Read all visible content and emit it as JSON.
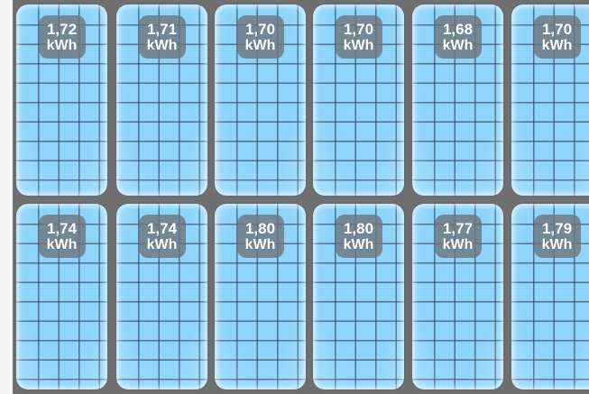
{
  "panels": [
    {
      "value": "1,72",
      "unit": "kWh"
    },
    {
      "value": "1,71",
      "unit": "kWh"
    },
    {
      "value": "1,70",
      "unit": "kWh"
    },
    {
      "value": "1,70",
      "unit": "kWh"
    },
    {
      "value": "1,68",
      "unit": "kWh"
    },
    {
      "value": "1,70",
      "unit": "kWh"
    },
    {
      "value": "1,74",
      "unit": "kWh"
    },
    {
      "value": "1,74",
      "unit": "kWh"
    },
    {
      "value": "1,80",
      "unit": "kWh"
    },
    {
      "value": "1,80",
      "unit": "kWh"
    },
    {
      "value": "1,77",
      "unit": "kWh"
    },
    {
      "value": "1,79",
      "unit": "kWh"
    }
  ],
  "colors": {
    "panel_fill": "#8fd4fb",
    "grid_line": "#37506a",
    "frame": "#6f6f6f",
    "badge": "#6e767c",
    "badge_text": "#ffffff"
  }
}
